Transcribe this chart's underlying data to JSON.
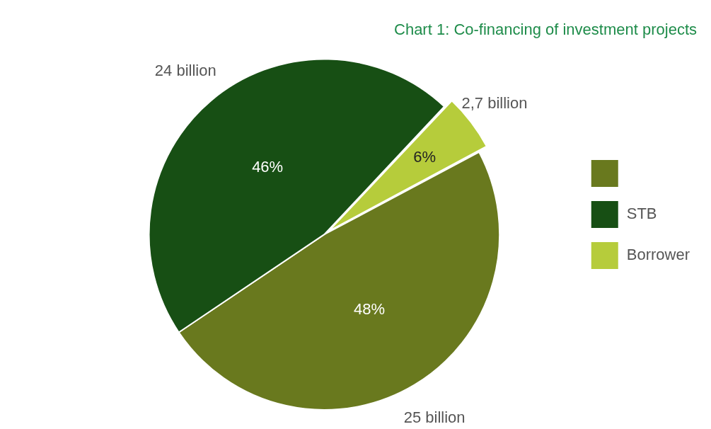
{
  "chart_data": {
    "type": "pie",
    "title": "Chart 1: Co-financing of investment projects",
    "categories": [
      null,
      "STB",
      "Borrower"
    ],
    "values": [
      25,
      24,
      2.7
    ],
    "colors": [
      "#69791e",
      "#174f14",
      "#b6cc3b"
    ],
    "value_labels": [
      "25 billion",
      "24 billion",
      "2,7 billion"
    ],
    "annotations": [
      "48%",
      "46%",
      "6%"
    ],
    "legend": "right"
  }
}
